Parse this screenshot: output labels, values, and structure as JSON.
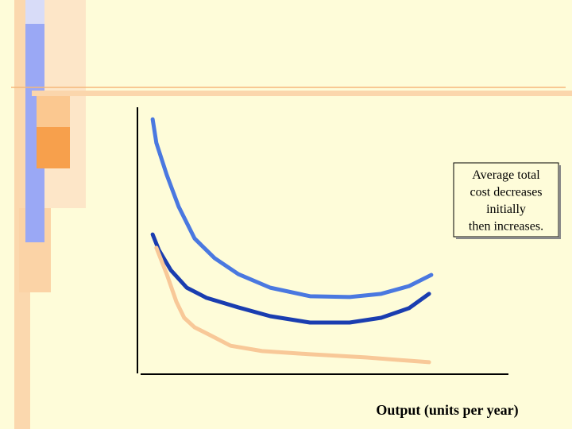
{
  "chart_data": {
    "type": "line",
    "xlabel": "Output (units per year)",
    "annotation": [
      "Average total",
      "cost decreases",
      "initially",
      "then increases."
    ],
    "xlim": [
      0,
      100
    ],
    "ylim": [
      0,
      100
    ],
    "series": [
      {
        "color": "#4a78e0",
        "x": [
          4.1,
          5.1,
          7.9,
          11.1,
          15.4,
          20.8,
          27.2,
          35.8,
          46.5,
          57.2,
          65.7,
          73.2,
          79.2
        ],
        "values": [
          95.5,
          86.6,
          74.6,
          62.7,
          50.7,
          43.3,
          37.3,
          32.2,
          29.0,
          28.7,
          29.9,
          32.8,
          37.0
        ]
      },
      {
        "color": "#1a3db0",
        "x": [
          4.1,
          5.8,
          9.0,
          13.3,
          18.6,
          27.2,
          35.8,
          46.5,
          57.2,
          65.7,
          73.2,
          78.6
        ],
        "values": [
          52.2,
          46.3,
          38.8,
          32.2,
          28.4,
          24.8,
          21.5,
          19.1,
          19.1,
          20.9,
          24.5,
          29.9
        ]
      },
      {
        "color": "#f8c898",
        "x": [
          5.1,
          7.9,
          10.5,
          12.6,
          15.4,
          19.7,
          25.1,
          33.6,
          46.5,
          61.5,
          78.6
        ],
        "values": [
          47.2,
          37.3,
          26.9,
          20.9,
          17.3,
          14.3,
          10.4,
          8.4,
          7.2,
          6.0,
          4.2
        ]
      }
    ]
  }
}
